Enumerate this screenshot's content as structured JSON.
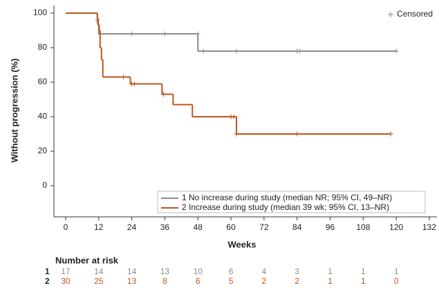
{
  "chart_data": {
    "type": "km",
    "y_label": "Without progression (%)",
    "x_label": "Weeks",
    "censored_label": "Censored",
    "xlim": [
      -4,
      134
    ],
    "xticks": [
      0,
      12,
      24,
      36,
      48,
      60,
      72,
      84,
      96,
      108,
      120,
      132
    ],
    "ylim": [
      -18,
      104
    ],
    "yticks": [
      0,
      20,
      40,
      60,
      80,
      100
    ],
    "series": [
      {
        "name": "1 No increase during study (median NR; 95% CI, 49–NR)",
        "color": "#8c8c8c",
        "x": [
          0,
          11.5,
          12,
          48,
          120
        ],
        "values": [
          100,
          94,
          88,
          78,
          78
        ],
        "censored_x": [
          11.5,
          12.5,
          24,
          36,
          48,
          50,
          62,
          84,
          85,
          120
        ],
        "censored_values": [
          96,
          88,
          88,
          88,
          88,
          78,
          78,
          78,
          78,
          78
        ]
      },
      {
        "name": "2 Increase during study (median 39 wk; 95% CI, 13–NR)",
        "color": "#c0531d",
        "x": [
          0,
          11.5,
          11.8,
          12.2,
          12.5,
          13,
          13.5,
          23.5,
          35,
          39,
          46,
          62,
          118
        ],
        "values": [
          100,
          97,
          93,
          90,
          80,
          73,
          63,
          59,
          53,
          47,
          40,
          30,
          30
        ],
        "censored_x": [
          21,
          24,
          25,
          35.5,
          60,
          61,
          62,
          84,
          118
        ],
        "censored_values": [
          63,
          59,
          59,
          53,
          40,
          40,
          30,
          30,
          30
        ]
      }
    ],
    "risk_table": {
      "title": "Number at risk",
      "rows": [
        {
          "label": "1",
          "counts": [
            17,
            14,
            14,
            13,
            10,
            6,
            4,
            3,
            1,
            1,
            1
          ]
        },
        {
          "label": "2",
          "counts": [
            30,
            25,
            13,
            8,
            6,
            5,
            2,
            2,
            1,
            1,
            0
          ]
        }
      ]
    }
  }
}
